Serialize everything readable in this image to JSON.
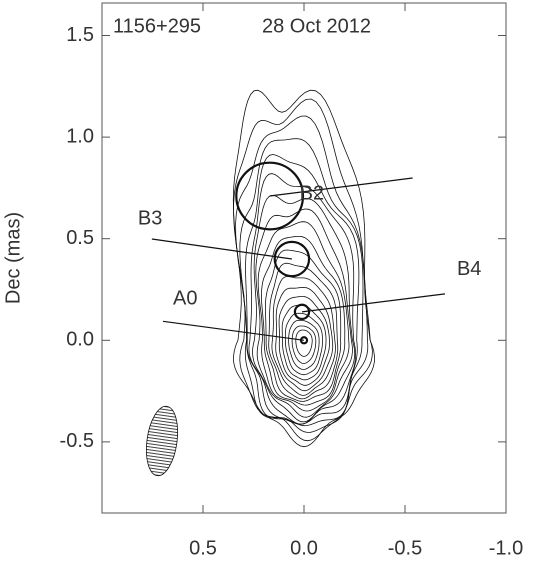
{
  "chart_data": {
    "type": "component_map",
    "source": "1156+295",
    "date": "28 Oct 2012",
    "y_label": "Dec (mas)",
    "xlim": [
      1.0,
      -1.0
    ],
    "ylim": [
      -0.85,
      1.66
    ],
    "xticks": [
      0.5,
      {
        "value": 0,
        "label": "0.0"
      },
      -0.5,
      {
        "value": -1,
        "label": "-1.0"
      }
    ],
    "yticks": [
      1.5,
      {
        "value": 1,
        "label": "1.0"
      },
      0.5,
      {
        "value": 0,
        "label": "0.0"
      },
      -0.5
    ],
    "components": [
      {
        "name": "B2",
        "x": 0.17,
        "y": 0.71,
        "size": 0.33
      },
      {
        "name": "B3",
        "x": 0.06,
        "y": 0.4,
        "size": 0.17
      },
      {
        "name": "B4",
        "x": 0.01,
        "y": 0.14,
        "size": 0.07
      },
      {
        "name": "A0",
        "x": 0,
        "y": 0,
        "size": 0.03
      }
    ]
  }
}
